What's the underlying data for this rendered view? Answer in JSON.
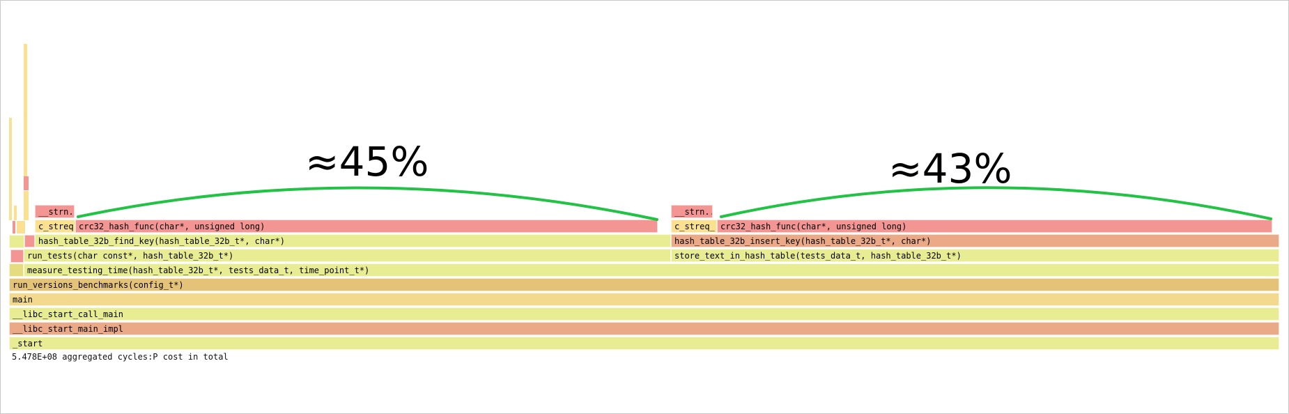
{
  "frames": {
    "start": "_start",
    "libc_start_main_impl": "__libc_start_main_impl",
    "libc_start_call_main": "__libc_start_call_main",
    "main": "main",
    "run_versions_benchmarks": "run_versions_benchmarks(config_t*)",
    "measure_testing_time": "measure_testing_time(hash_table_32b_t*, tests_data_t, time_point_t*)",
    "run_tests": "run_tests(char const*, hash_table_32b_t*)",
    "store_text": "store_text_in_hash_table(tests_data_t, hash_table_32b_t*)",
    "find_key": "hash_table_32b_find_key(hash_table_32b_t*, char*)",
    "insert_key": "hash_table_32b_insert_key(hash_table_32b_t*, char*)",
    "c_streq_left": "c_streq",
    "c_streq_right": "c_streq_",
    "crc32_left": "crc32_hash_func(char*, unsigned long)",
    "crc32_right": "crc32_hash_func(char*, unsigned long)",
    "strn_left": "__strn..",
    "strn_right": "__strn.."
  },
  "total_label": "5.478E+08 aggregated cycles:P cost in total",
  "annotations": {
    "left_percent": "≈45%",
    "right_percent": "≈43%",
    "arc_color": "#22c244"
  },
  "colors": {
    "yellow_green": "#e8ed94",
    "red": "#f39693",
    "orange": "#e4c278",
    "gold": "#f2d98d",
    "salmon": "#eaaa88"
  }
}
